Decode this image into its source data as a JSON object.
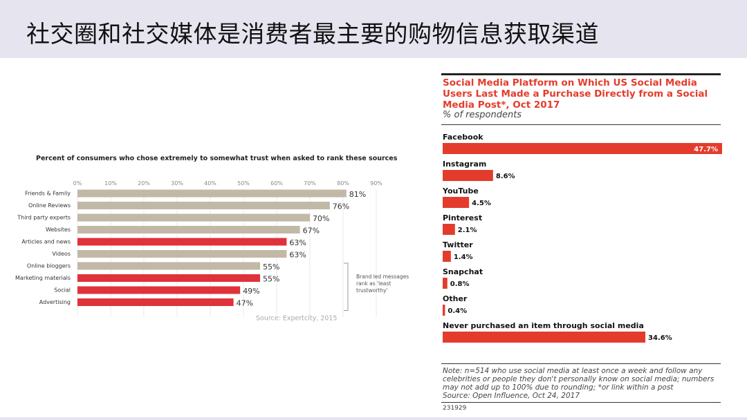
{
  "slide": {
    "title": "社交圈和社交媒体是消费者最主要的购物信息获取渠道"
  },
  "chart_data": [
    {
      "type": "bar",
      "orientation": "horizontal",
      "title": "Percent of consumers who chose extremely to somewhat trust when asked to rank these sources",
      "x_ticks": [
        "0%",
        "10%",
        "20%",
        "30%",
        "40%",
        "50%",
        "60%",
        "70%",
        "80%",
        "90%"
      ],
      "xlim": [
        0,
        90
      ],
      "categories": [
        "Friends & Family",
        "Online Reviews",
        "Third party experts",
        "Websites",
        "Articles and news",
        "Videos",
        "Online bloggers",
        "Marketing materials",
        "Social",
        "Advertising"
      ],
      "values": [
        81,
        76,
        70,
        67,
        63,
        63,
        55,
        55,
        49,
        47
      ],
      "value_labels": [
        "81%",
        "76%",
        "70%",
        "67%",
        "63%",
        "63%",
        "55%",
        "55%",
        "49%",
        "47%"
      ],
      "highlighted": [
        false,
        false,
        false,
        false,
        true,
        false,
        false,
        true,
        true,
        true
      ],
      "colors": {
        "default": "#c2b8a6",
        "highlight": "#e0323a"
      },
      "annotation": [
        "Brand led messages",
        "rank as 'least",
        "trustworthy'"
      ],
      "source": "Source: Expertcity, 2015",
      "grid": true
    },
    {
      "type": "bar",
      "orientation": "horizontal",
      "title": "Social Media Platform on Which US Social Media Users Last Made a Purchase Directly from a Social Media Post*, Oct 2017",
      "subtitle": "% of respondents",
      "categories": [
        "Facebook",
        "Instagram",
        "YouTube",
        "Pinterest",
        "Twitter",
        "Snapchat",
        "Other",
        "Never purchased an item through social media"
      ],
      "values": [
        47.7,
        8.6,
        4.5,
        2.1,
        1.4,
        0.8,
        0.4,
        34.6
      ],
      "value_labels": [
        "47.7%",
        "8.6%",
        "4.5%",
        "2.1%",
        "1.4%",
        "0.8%",
        "0.4%",
        "34.6%"
      ],
      "colors": {
        "bar": "#e43c2c"
      },
      "note": "Note: n=514 who use social media at least once a week and follow any celebrities or people they don't personally know on social media; numbers may not add up to 100% due to rounding; *or link within a post",
      "source": "Source: Open Influence, Oct 24, 2017",
      "id": "231929"
    }
  ]
}
